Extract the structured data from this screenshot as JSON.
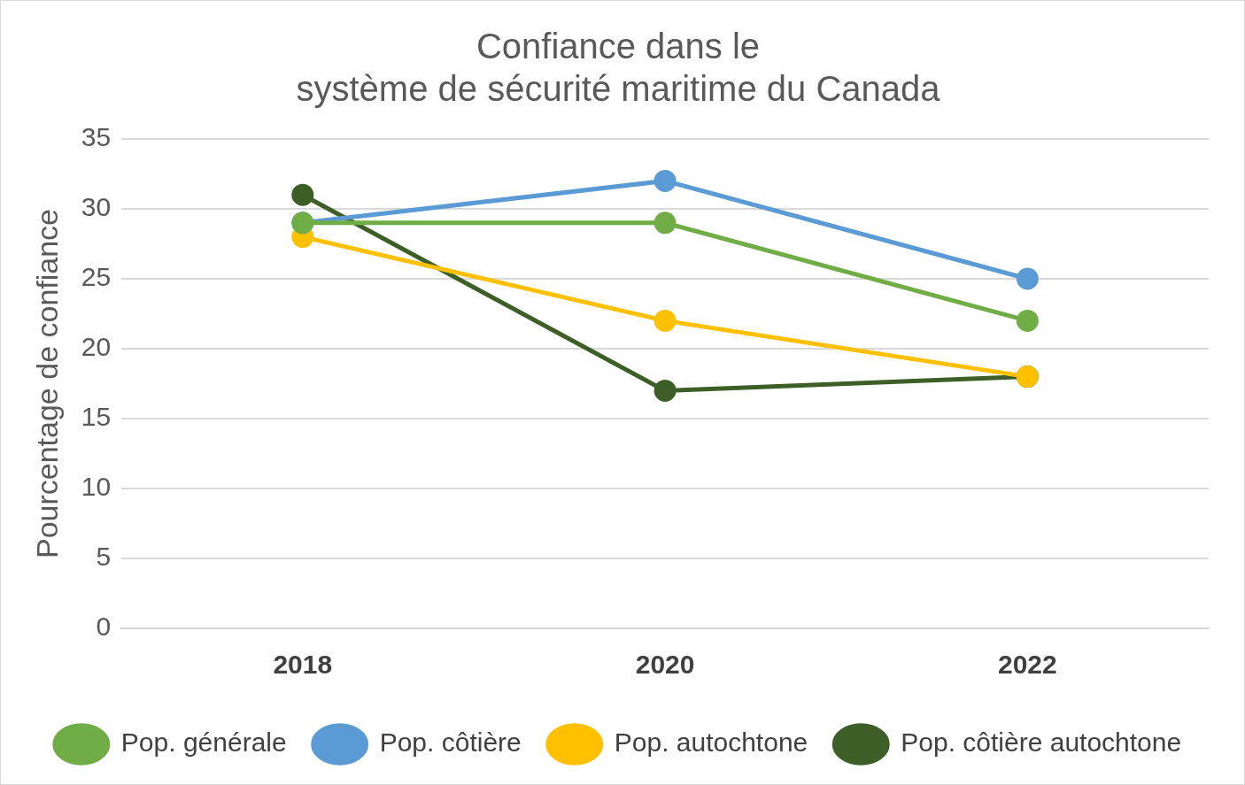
{
  "chart_data": {
    "type": "line",
    "title": "Confiance dans le système de sécurité maritime du Canada",
    "y_label": "Pourcentage de confiance",
    "categories": [
      "2018",
      "2020",
      "2022"
    ],
    "series": [
      {
        "name": "Pop. générale",
        "color": "#70ad47",
        "values": [
          29,
          29,
          22
        ]
      },
      {
        "name": "Pop. côtière",
        "color": "#5b9bd5",
        "values": [
          29,
          32,
          25
        ]
      },
      {
        "name": "Pop. autochtone",
        "color": "#ffc000",
        "values": [
          28,
          22,
          18
        ]
      },
      {
        "name": "Pop. côtière autochtone",
        "color": "#3d5f27",
        "values": [
          31,
          17,
          18
        ]
      }
    ],
    "ylim": [
      0,
      35
    ],
    "yticks": [
      0,
      5,
      10,
      15,
      20,
      25,
      30,
      35
    ],
    "grid": true,
    "legend": "bottom",
    "marker": "circle"
  }
}
